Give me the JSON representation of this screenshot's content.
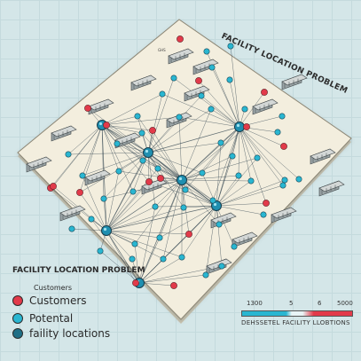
{
  "title": "FACILITY LOCATION PROBLEM",
  "legend": {
    "title": "FACILITY LOCATION PROBLEM",
    "subtitle": "Customers",
    "items": [
      {
        "label": "Customers",
        "color": "#e23a4a"
      },
      {
        "label": "Potental",
        "color": "#29b6d1"
      },
      {
        "label": "faility locations",
        "color": "#1f6f86"
      }
    ]
  },
  "scale": {
    "ticks": [
      "1300",
      "5",
      "6",
      "5000"
    ],
    "caption": "DEHSSETEL FACILITY LLOBTIONS",
    "colors": [
      "#29b6d1",
      "#e8f4f6",
      "#e23a4a"
    ]
  },
  "warehouse_sign": "GHS",
  "colors": {
    "customer": "#e23a4a",
    "facility": "#29b6d1",
    "hub": "#1f8fb0",
    "board": "#f1ecdd",
    "line": "#3a4b55"
  }
}
